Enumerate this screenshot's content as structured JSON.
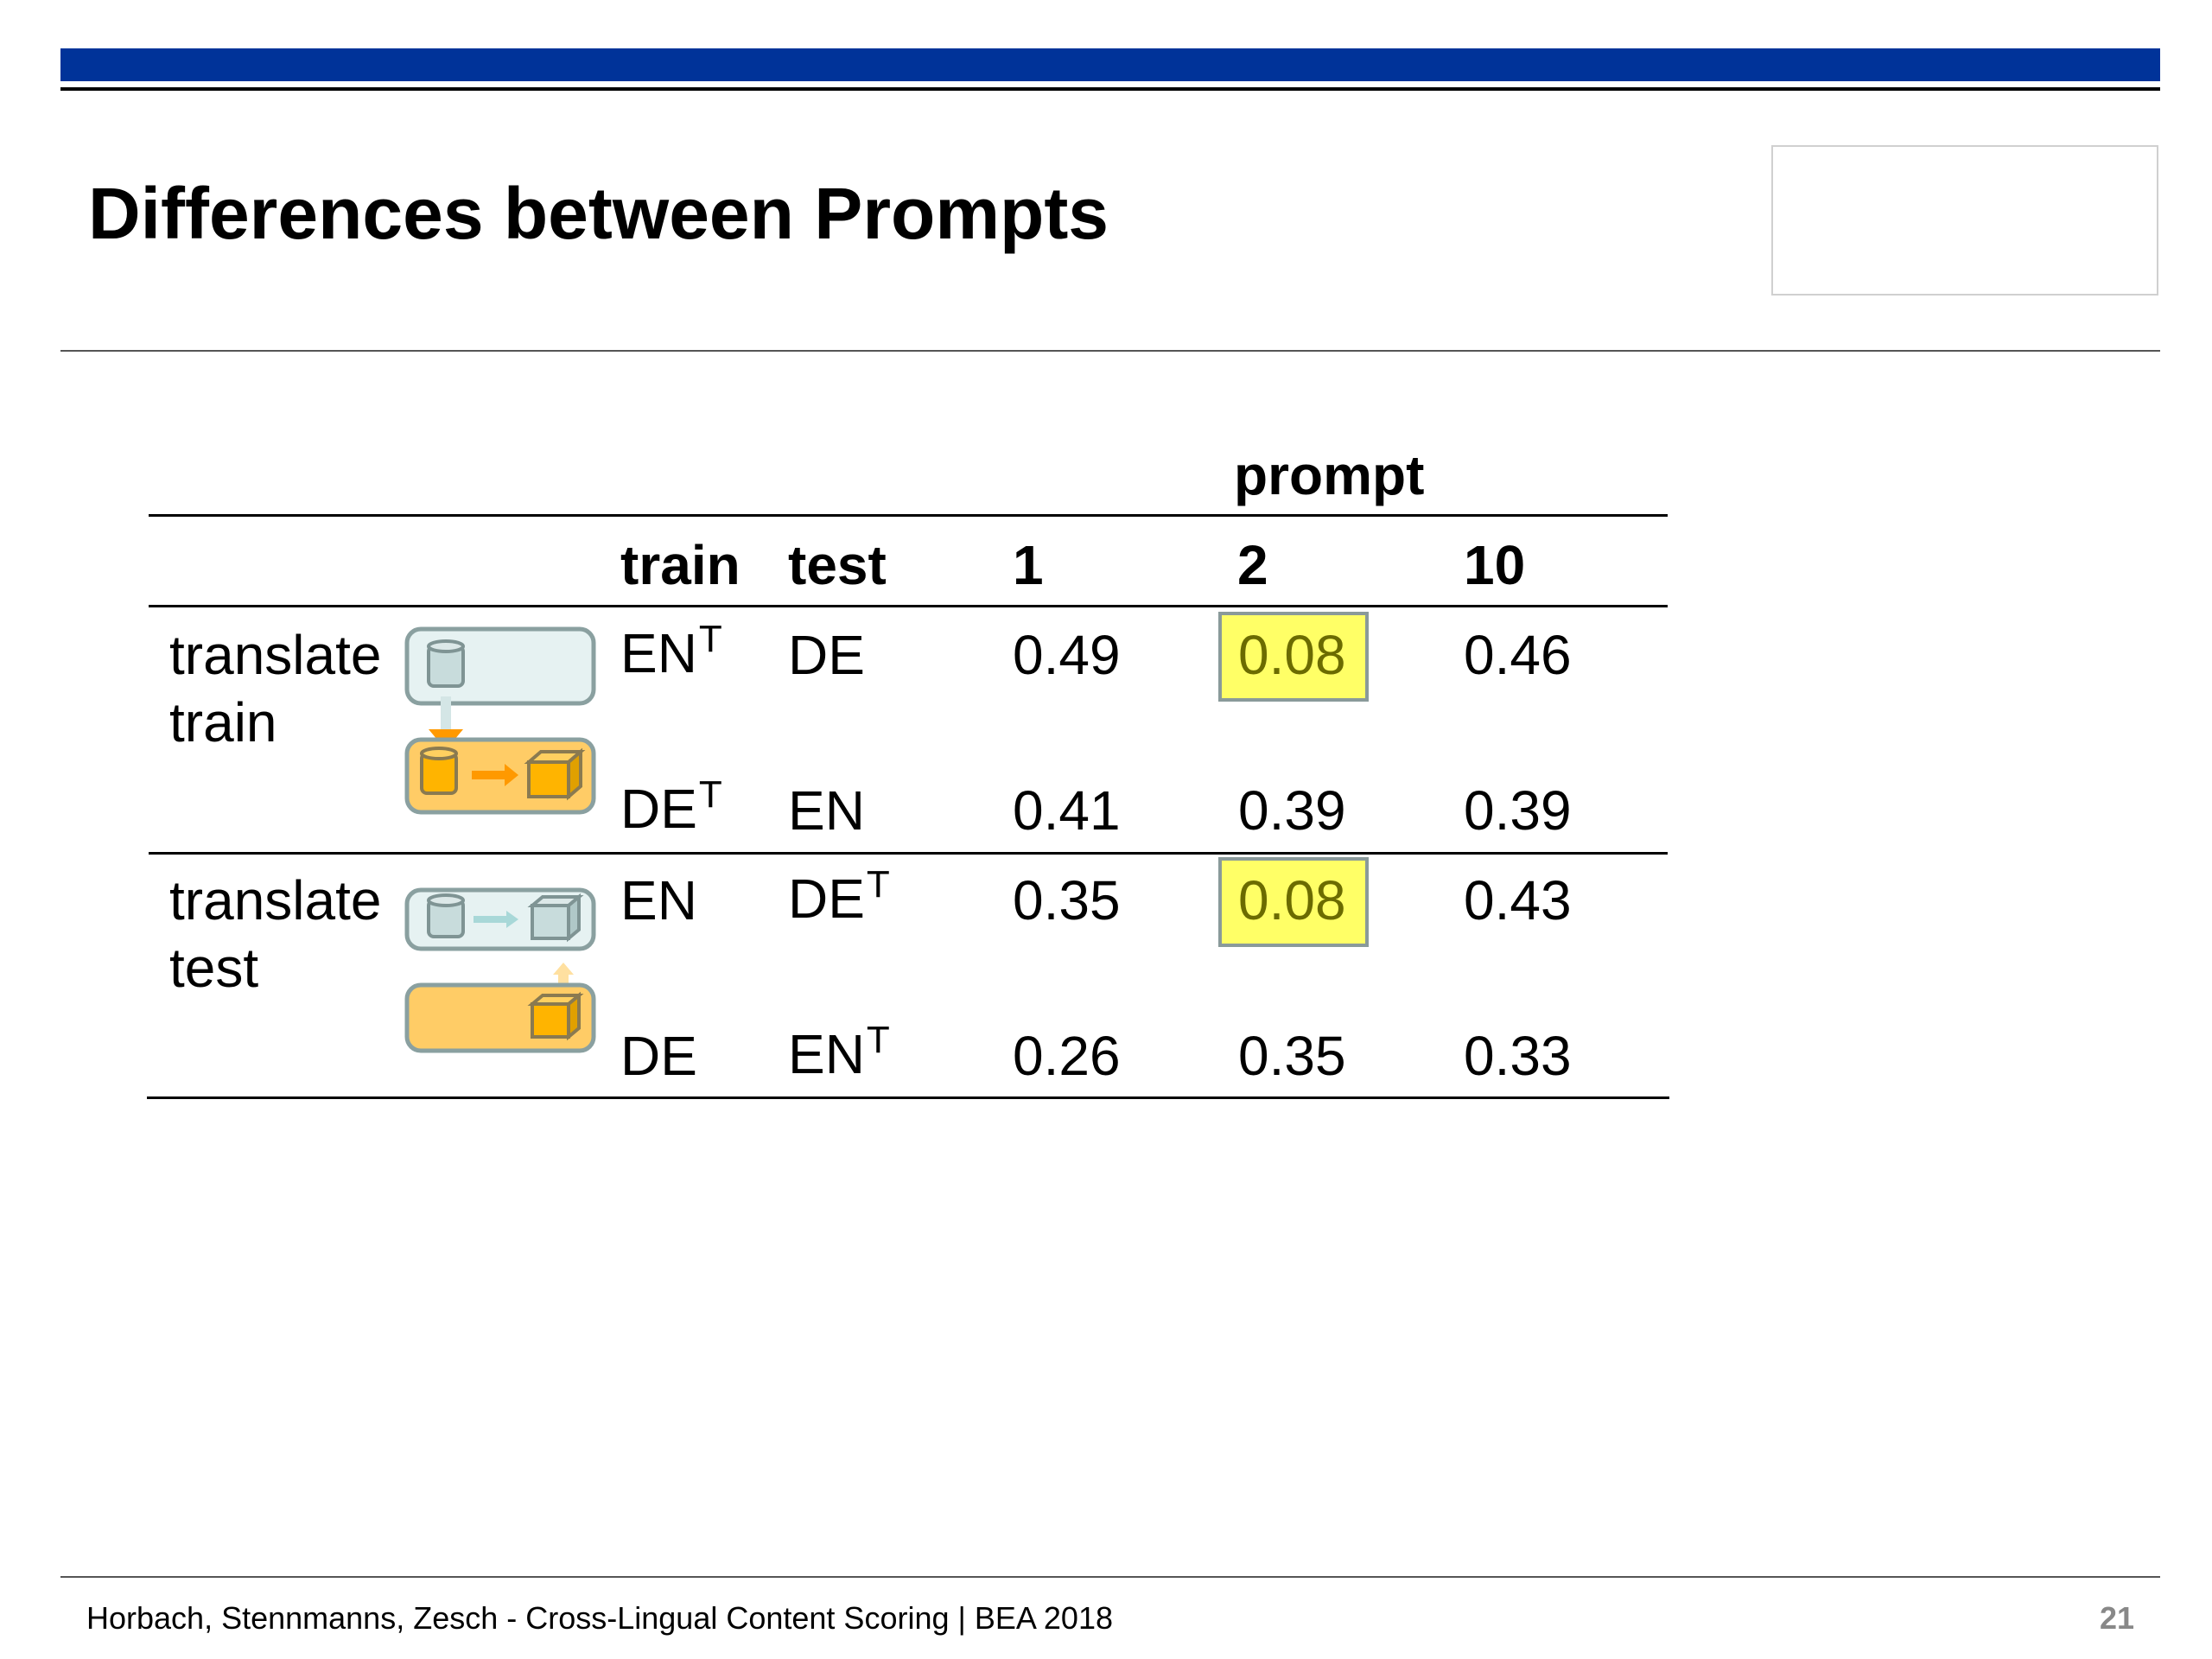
{
  "slide": {
    "title": "Differences between Prompts",
    "footer": "Horbach, Stennmanns, Zesch - Cross-Lingual Content Scoring | BEA 2018",
    "page_number": "21"
  },
  "table": {
    "group_header": "prompt",
    "headers": {
      "train": "train",
      "test": "test",
      "p1": "1",
      "p2": "2",
      "p10": "10"
    },
    "groups": [
      {
        "label_line1": "translate",
        "label_line2": "train",
        "rows": [
          {
            "train": "EN",
            "train_sup": "T",
            "test": "DE",
            "test_sup": "",
            "p1": "0.49",
            "p2": "0.08",
            "p10": "0.46",
            "p2_highlight": true
          },
          {
            "train": "DE",
            "train_sup": "T",
            "test": "EN",
            "test_sup": "",
            "p1": "0.41",
            "p2": "0.39",
            "p10": "0.39",
            "p2_highlight": false
          }
        ]
      },
      {
        "label_line1": "translate",
        "label_line2": "test",
        "rows": [
          {
            "train": "EN",
            "train_sup": "",
            "test": "DE",
            "test_sup": "T",
            "p1": "0.35",
            "p2": "0.08",
            "p10": "0.43",
            "p2_highlight": true
          },
          {
            "train": "DE",
            "train_sup": "",
            "test": "EN",
            "test_sup": "T",
            "p1": "0.26",
            "p2": "0.35",
            "p10": "0.33",
            "p2_highlight": false
          }
        ]
      }
    ]
  },
  "colors": {
    "bar": "#003399",
    "highlight": "#ffff66",
    "diagram_light": "#e6f2f2",
    "diagram_orange": "#ffcc66",
    "arrow_orange": "#ff9900"
  }
}
